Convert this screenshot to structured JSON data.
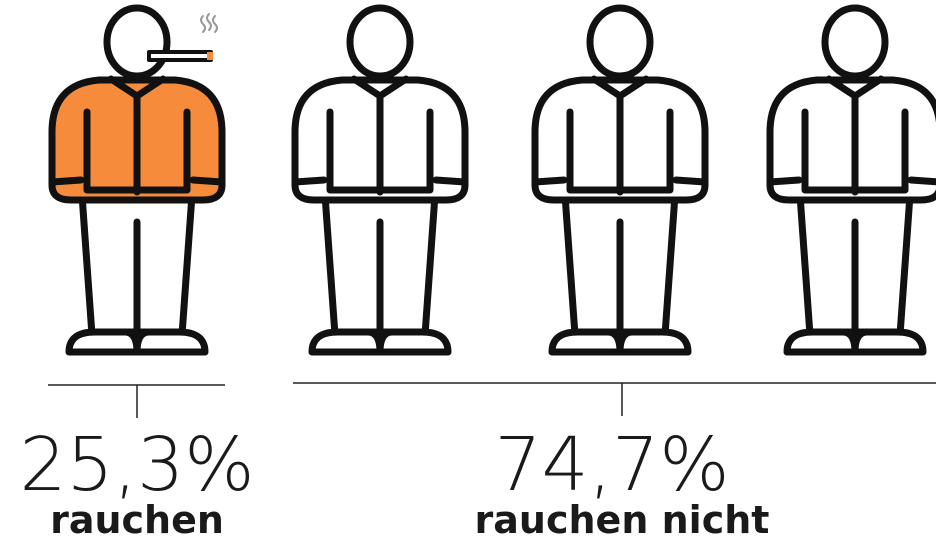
{
  "chart_data": {
    "type": "pictogram",
    "categories": [
      "rauchen",
      "rauchen nicht"
    ],
    "values": [
      25.3,
      74.7
    ],
    "value_labels": [
      "25,3%",
      "74,7%"
    ],
    "color": "#f68b3c"
  }
}
